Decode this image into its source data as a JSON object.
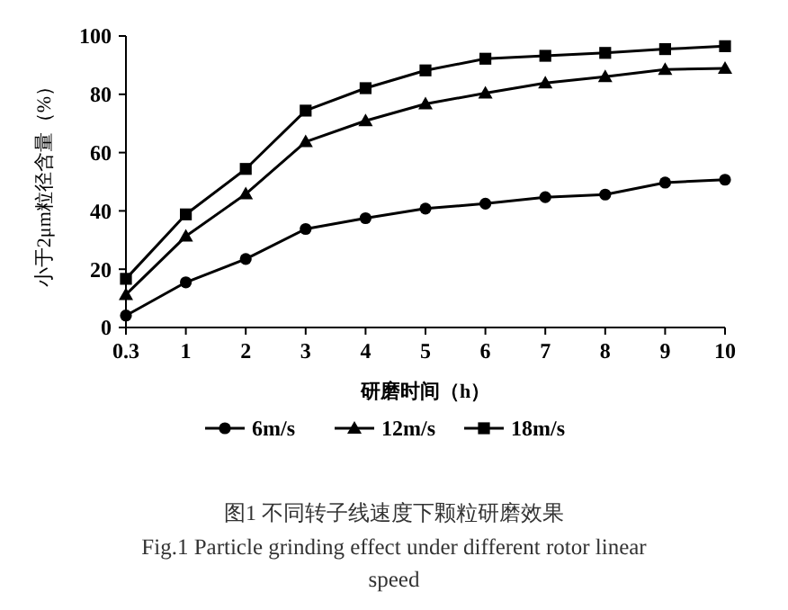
{
  "chart_data": {
    "type": "line",
    "xlabel": "研磨时间（h）",
    "ylabel": "小于2μm粒径含量（%）",
    "categories": [
      "0.3",
      "1",
      "2",
      "3",
      "4",
      "5",
      "6",
      "7",
      "8",
      "9",
      "10"
    ],
    "ylim": [
      0,
      100
    ],
    "yticks": [
      0,
      20,
      40,
      60,
      80,
      100
    ],
    "legend": "bottom",
    "grid": false,
    "line_style": "solid",
    "series": [
      {
        "name": "6m/s",
        "color": "#000000",
        "marker": "circle",
        "values": [
          4.1,
          15.5,
          23.5,
          33.8,
          37.5,
          40.8,
          42.5,
          44.7,
          45.6,
          49.7,
          50.7
        ]
      },
      {
        "name": "12m/s",
        "color": "#000000",
        "marker": "triangle",
        "values": [
          11.3,
          31.3,
          45.8,
          63.7,
          70.9,
          76.7,
          80.4,
          83.9,
          86,
          88.5,
          88.9
        ]
      },
      {
        "name": "18m/s",
        "color": "#000000",
        "marker": "square",
        "values": [
          16.7,
          38.8,
          54.4,
          74.4,
          82.1,
          88.2,
          92.2,
          93.2,
          94.2,
          95.5,
          96.5
        ]
      }
    ],
    "annotations": [
      "图1  不同转子线速度下颗粒研磨效果",
      "Fig.1 Particle grinding effect under different rotor linear speed"
    ]
  }
}
